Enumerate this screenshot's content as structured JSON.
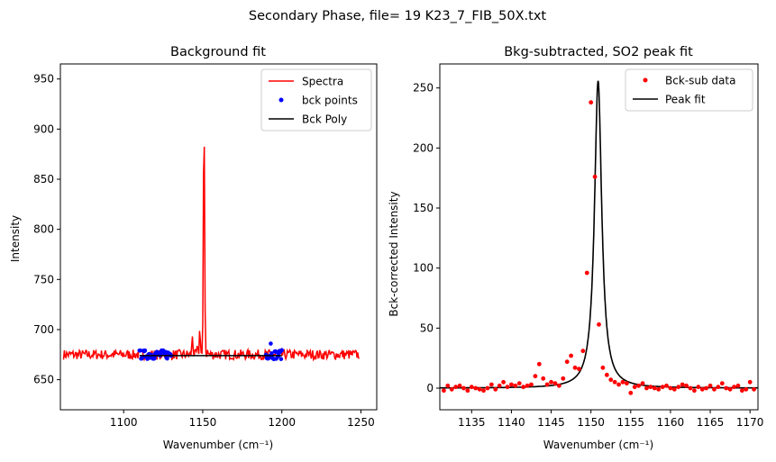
{
  "figure": {
    "suptitle": "Secondary Phase, file= 19 K23_7_FIB_50X.txt"
  },
  "chart_data": [
    {
      "type": "line",
      "title": "Background fit",
      "xlabel": "Wavenumber (cm⁻¹)",
      "ylabel": "Intensity",
      "xlim": [
        1060,
        1260
      ],
      "ylim": [
        620,
        965
      ],
      "xticks": [
        1100,
        1150,
        1200,
        1250
      ],
      "yticks": [
        650,
        700,
        750,
        800,
        850,
        900,
        950
      ],
      "legend": {
        "placement": "top-right",
        "entries": [
          "Spectra",
          "bck points",
          "Bck Poly"
        ]
      },
      "series": [
        {
          "name": "Spectra",
          "kind": "line",
          "color": "#ff0000",
          "peaks": [
            [
              1143.5,
              694
            ],
            [
              1146.5,
              680
            ],
            [
              1148.2,
              701
            ],
            [
              1150.8,
              912
            ],
            [
              1153,
              678
            ]
          ],
          "x_range": [
            1062,
            1249
          ],
          "baseline": 675
        },
        {
          "name": "bck points",
          "kind": "scatter",
          "color": "#0000ff",
          "x_ranges": [
            [
              1110,
              1130
            ],
            [
              1190,
              1200
            ]
          ],
          "baseline": 675
        },
        {
          "name": "Bck Poly",
          "kind": "line",
          "color": "#000000",
          "x": [
            1110,
            1200
          ],
          "y": [
            674,
            674
          ]
        }
      ]
    },
    {
      "type": "line",
      "title": "Bkg-subtracted, SO2 peak fit",
      "xlabel": "Wavenumber (cm⁻¹)",
      "ylabel": "Bck-corrected Intensity",
      "xlim": [
        1131,
        1171
      ],
      "ylim": [
        -18,
        270
      ],
      "xticks": [
        1135,
        1140,
        1145,
        1150,
        1155,
        1160,
        1165,
        1170
      ],
      "yticks": [
        0,
        50,
        100,
        150,
        200,
        250
      ],
      "legend": {
        "placement": "top-right",
        "entries": [
          "Bck-sub data",
          "Peak fit"
        ]
      },
      "series": [
        {
          "name": "Bck-sub data",
          "kind": "scatter",
          "color": "#ff0000",
          "x": [
            1131.5,
            1132,
            1132.5,
            1133,
            1133.5,
            1134,
            1134.5,
            1135,
            1135.5,
            1136,
            1136.5,
            1137,
            1137.5,
            1138,
            1138.5,
            1139,
            1139.5,
            1140,
            1140.5,
            1141,
            1141.5,
            1142,
            1142.5,
            1143,
            1143.5,
            1144,
            1144.5,
            1145,
            1145.5,
            1146,
            1146.5,
            1147,
            1147.5,
            1148,
            1148.5,
            1149,
            1149.5,
            1150,
            1150.5,
            1151,
            1151.5,
            1152,
            1152.5,
            1153,
            1153.5,
            1154,
            1154.5,
            1155,
            1155.5,
            1156,
            1156.5,
            1157,
            1157.5,
            1158,
            1158.5,
            1159,
            1159.5,
            1160,
            1160.5,
            1161,
            1161.5,
            1162,
            1162.5,
            1163,
            1163.5,
            1164,
            1164.5,
            1165,
            1165.5,
            1166,
            1166.5,
            1167,
            1167.5,
            1168,
            1168.5,
            1169,
            1169.5,
            1170,
            1170.5
          ],
          "y": [
            -2,
            2,
            -1,
            1,
            2,
            0,
            -2,
            1,
            0,
            -1,
            -2,
            0,
            3,
            -1,
            2,
            5,
            1,
            3,
            2,
            4,
            1,
            2,
            3,
            10,
            20,
            8,
            3,
            5,
            4,
            2,
            8,
            22,
            27,
            17,
            16,
            31,
            96,
            238,
            176,
            53,
            17,
            11,
            7,
            5,
            3,
            5,
            4,
            -4,
            1,
            2,
            4,
            0,
            1,
            0,
            -1,
            1,
            2,
            0,
            -1,
            1,
            3,
            2,
            0,
            -2,
            1,
            -1,
            0,
            2,
            -1,
            1,
            4,
            0,
            -1,
            1,
            2,
            -2,
            -1,
            5,
            -1
          ]
        },
        {
          "name": "Peak fit",
          "kind": "line",
          "color": "#000000",
          "center": 1150.9,
          "amplitude": 256,
          "hwhm": 0.55
        }
      ]
    }
  ]
}
